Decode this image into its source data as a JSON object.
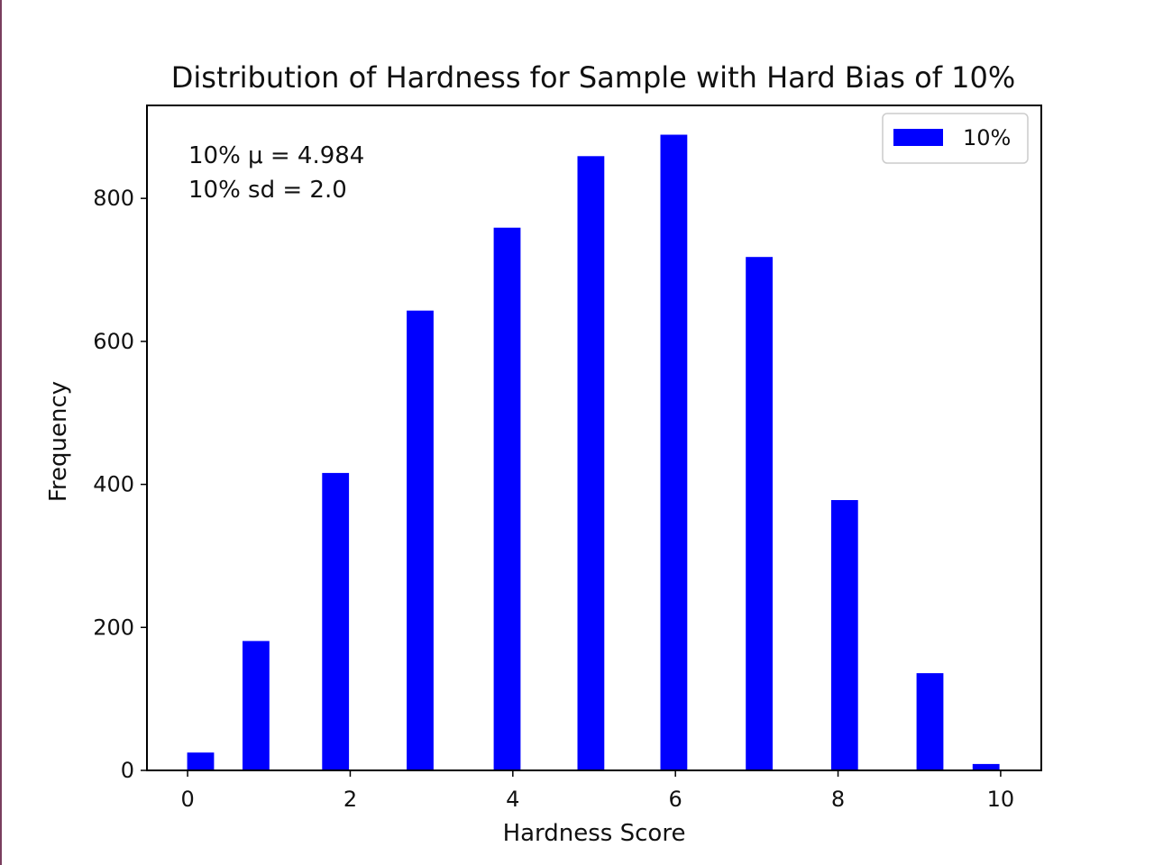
{
  "chart_data": {
    "type": "bar",
    "title": "Distribution of Hardness for Sample with Hard Bias of 10%",
    "xlabel": "Hardness Score",
    "ylabel": "Frequency",
    "x": [
      0.16,
      0.84,
      1.82,
      2.86,
      3.93,
      4.96,
      5.98,
      7.03,
      8.08,
      9.13,
      9.82
    ],
    "values": [
      25,
      181,
      416,
      643,
      759,
      859,
      889,
      718,
      378,
      136,
      9
    ],
    "bar_width": 0.33,
    "xlim": [
      -0.5,
      10.5
    ],
    "ylim": [
      0,
      930
    ],
    "xticks": [
      0,
      2,
      4,
      6,
      8,
      10
    ],
    "yticks": [
      0,
      200,
      400,
      600,
      800
    ],
    "xtick_labels": [
      "0",
      "2",
      "4",
      "6",
      "8",
      "10"
    ],
    "ytick_labels": [
      "0",
      "200",
      "400",
      "600",
      "800"
    ],
    "bar_color": "#0000ff",
    "series": [
      {
        "name": "10%",
        "values": [
          25,
          181,
          416,
          643,
          759,
          859,
          889,
          718,
          378,
          136,
          9
        ]
      }
    ],
    "legend": {
      "position": "top-right",
      "label": "10%"
    },
    "annotations": [
      "10% μ =  4.984",
      "10% sd = 2.0"
    ],
    "grid": false
  }
}
